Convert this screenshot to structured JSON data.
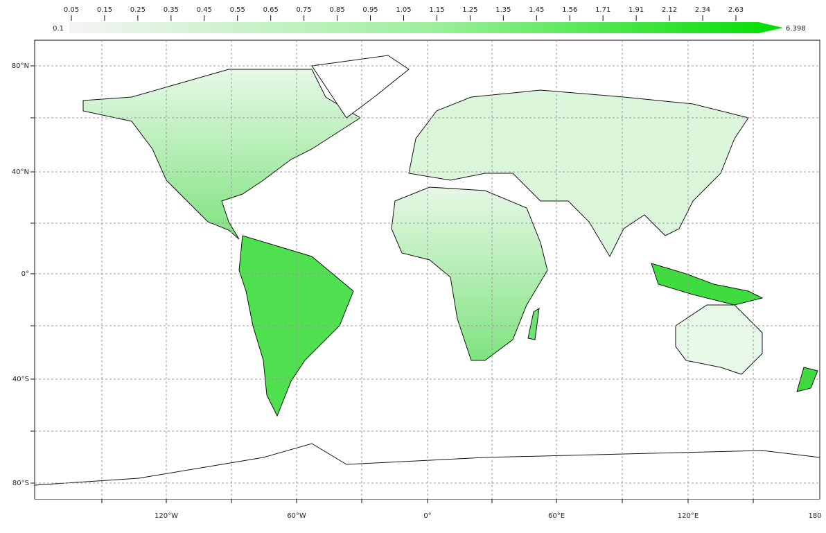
{
  "colorbar": {
    "ticks": [
      "0.05",
      "0.15",
      "0.25",
      "0.35",
      "0.45",
      "0.55",
      "0.65",
      "0.75",
      "0.85",
      "0.95",
      "1.05",
      "1.15",
      "1.25",
      "1.35",
      "1.45",
      "1.56",
      "1.71",
      "1.91",
      "2.12",
      "2.34",
      "2.63"
    ],
    "min_label": "0.1",
    "max_label": "6.398"
  },
  "map": {
    "lat_labels": [
      "80°N",
      "40°N",
      "0°",
      "40°S",
      "80°S"
    ],
    "lon_labels": [
      "120°W",
      "60°W",
      "0°",
      "60°E",
      "120°E",
      "180"
    ]
  }
}
